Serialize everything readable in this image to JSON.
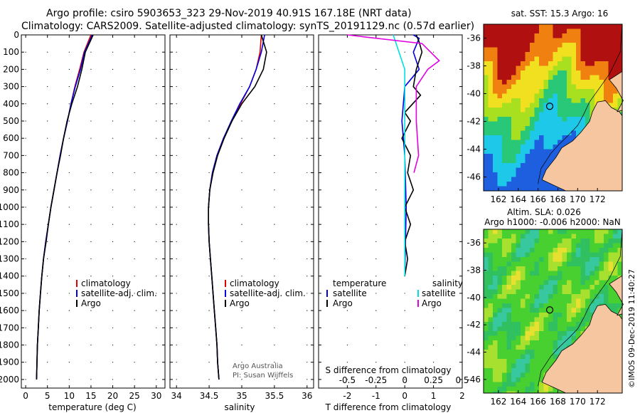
{
  "header": {
    "line1": "Argo profile: csiro 5903653_323 29-Nov-2019 40.91S 167.18E (NRT data)",
    "line2": "Climatology: CARS2009. Satellite-adjusted climatology: synTS_20191129.nc (0.57d earlier)"
  },
  "watermark": "©IMOS 09-Dec-2019 11:40:27",
  "credit": {
    "line1": "Argo Australia",
    "line2": "PI: Susan Wijffels"
  },
  "colors": {
    "climatology": "#e00000",
    "satellite": "#0000e0",
    "argo": "#000000",
    "sat_salinity": "#00e0e0",
    "clim_salinity": "#e000e0",
    "land": "#f5c6a0"
  },
  "chart_data": [
    {
      "type": "line",
      "id": "temperature_profile",
      "xlabel": "temperature (deg C)",
      "ylabel": "pressure",
      "xlim": [
        -1,
        32
      ],
      "ylim": [
        2050,
        0
      ],
      "xticks": [
        0,
        5,
        10,
        15,
        20,
        25,
        30
      ],
      "yticks": [
        0,
        100,
        200,
        300,
        400,
        500,
        600,
        700,
        800,
        900,
        1000,
        1100,
        1200,
        1300,
        1400,
        1500,
        1600,
        1700,
        1800,
        1900,
        2000
      ],
      "grid": true,
      "legend": [
        "climatology",
        "satellite-adj. clim.",
        "Argo"
      ],
      "series": [
        {
          "name": "climatology",
          "color": "#e00000",
          "x": [
            15.0,
            13.4,
            12.4,
            11.3,
            10.4,
            9.6,
            8.7,
            7.9,
            7.2,
            6.5,
            5.8,
            5.2,
            4.6,
            4.1,
            3.7,
            3.4,
            3.1,
            2.9,
            2.7,
            2.6,
            2.5
          ],
          "y": [
            0,
            100,
            200,
            300,
            400,
            500,
            600,
            700,
            800,
            900,
            1000,
            1100,
            1200,
            1300,
            1400,
            1500,
            1600,
            1700,
            1800,
            1900,
            2000
          ]
        },
        {
          "name": "satellite-adj. clim.",
          "color": "#0000e0",
          "x": [
            15.3,
            13.5,
            12.6,
            11.4,
            10.4,
            9.6,
            8.7,
            7.9,
            7.2,
            6.5,
            5.8,
            5.2,
            4.6,
            4.1,
            3.7,
            3.4,
            3.1,
            2.9,
            2.7,
            2.6,
            2.5
          ],
          "y": [
            0,
            100,
            200,
            300,
            400,
            500,
            600,
            700,
            800,
            900,
            1000,
            1100,
            1200,
            1300,
            1400,
            1500,
            1600,
            1700,
            1800,
            1900,
            2000
          ]
        },
        {
          "name": "Argo",
          "color": "#000000",
          "x": [
            15.5,
            13.7,
            12.9,
            11.9,
            10.6,
            9.5,
            8.7,
            8.0,
            7.2,
            6.5,
            5.8,
            5.2,
            4.7,
            4.1,
            3.7,
            3.4,
            3.1,
            2.9,
            2.7,
            2.6,
            2.5
          ],
          "y": [
            0,
            100,
            200,
            300,
            400,
            500,
            600,
            700,
            800,
            900,
            1000,
            1100,
            1200,
            1300,
            1400,
            1500,
            1600,
            1700,
            1800,
            1900,
            2000
          ]
        }
      ]
    },
    {
      "type": "line",
      "id": "salinity_profile",
      "xlabel": "salinity",
      "ylabel": "pressure",
      "xlim": [
        33.9,
        36.1
      ],
      "ylim": [
        2050,
        0
      ],
      "xticks": [
        34,
        34.5,
        35,
        35.5,
        36
      ],
      "grid": true,
      "legend": [
        "climatology",
        "satellite-adj. clim.",
        "Argo"
      ],
      "series": [
        {
          "name": "climatology",
          "color": "#e00000",
          "x": [
            35.3,
            35.28,
            35.22,
            35.12,
            34.98,
            34.85,
            34.72,
            34.62,
            34.55,
            34.51,
            34.49,
            34.49,
            34.5,
            34.52,
            34.54,
            34.56,
            34.58,
            34.6,
            34.62,
            34.63,
            34.65
          ],
          "y": [
            0,
            100,
            200,
            300,
            400,
            500,
            600,
            700,
            800,
            900,
            1000,
            1100,
            1200,
            1300,
            1400,
            1500,
            1600,
            1700,
            1800,
            1900,
            2000
          ]
        },
        {
          "name": "satellite-adj. clim.",
          "color": "#0000e0",
          "x": [
            35.35,
            35.3,
            35.22,
            35.12,
            34.97,
            34.84,
            34.72,
            34.62,
            34.55,
            34.51,
            34.49,
            34.49,
            34.5,
            34.52,
            34.54,
            34.56,
            34.58,
            34.6,
            34.62,
            34.63,
            34.65
          ],
          "y": [
            0,
            100,
            200,
            300,
            400,
            500,
            600,
            700,
            800,
            900,
            1000,
            1100,
            1200,
            1300,
            1400,
            1500,
            1600,
            1700,
            1800,
            1900,
            2000
          ]
        },
        {
          "name": "Argo",
          "color": "#000000",
          "x": [
            35.3,
            35.38,
            35.33,
            35.2,
            35.0,
            34.85,
            34.73,
            34.63,
            34.56,
            34.51,
            34.49,
            34.49,
            34.5,
            34.52,
            34.54,
            34.56,
            34.58,
            34.6,
            34.62,
            34.63,
            34.65
          ],
          "y": [
            0,
            100,
            200,
            300,
            400,
            500,
            600,
            700,
            800,
            900,
            1000,
            1100,
            1200,
            1300,
            1400,
            1500,
            1600,
            1700,
            1800,
            1900,
            2000
          ]
        }
      ]
    },
    {
      "type": "line",
      "id": "difference_profile",
      "xlabel": "T difference from climatology",
      "xlabel_top": "S difference from climatology",
      "xlim": [
        -3,
        2
      ],
      "ylim": [
        2050,
        0
      ],
      "xticks": [
        -2,
        -1,
        0,
        1,
        2
      ],
      "xticks_s": [
        -0.5,
        -0.25,
        0,
        0.25,
        0.5
      ],
      "xticks_s_labels": [
        "-0.5",
        "-0.25",
        "0",
        "0.25",
        "0.5"
      ],
      "grid": true,
      "legend_temperature_title": "temperature",
      "legend_salinity_title": "salinity",
      "legend_temperature": [
        "satellite",
        "Argo"
      ],
      "legend_salinity": [
        "satellite",
        "Argo"
      ],
      "series": [
        {
          "name": "temperature satellite",
          "color": "#0000e0",
          "x": [
            0.3,
            0.5,
            0.3,
            0.5,
            0.0,
            -0.1,
            0.0,
            0.05,
            0.0
          ],
          "y": [
            0,
            20,
            100,
            200,
            300,
            500,
            700,
            1000,
            1400
          ]
        },
        {
          "name": "temperature Argo",
          "color": "#000000",
          "x": [
            0.4,
            0.5,
            0.6,
            0.4,
            0.3,
            0.55,
            0.0,
            0.2,
            -0.1,
            0.2,
            0.1,
            0.3,
            0.0,
            0.2,
            0.0,
            0.1,
            0.0
          ],
          "y": [
            0,
            40,
            100,
            200,
            300,
            350,
            450,
            500,
            600,
            700,
            800,
            900,
            1000,
            1100,
            1200,
            1300,
            1400
          ]
        },
        {
          "name": "salinity satellite",
          "color": "#00e0e0",
          "x": [
            -0.1,
            -0.05,
            0.0,
            0.0,
            0.0,
            0.0
          ],
          "y": [
            0,
            100,
            200,
            500,
            1000,
            1400
          ]
        },
        {
          "name": "salinity Argo",
          "color": "#e000e0",
          "x": [
            -0.5,
            0.15,
            0.3,
            0.2,
            0.1,
            0.1,
            0.12,
            0.08
          ],
          "y": [
            0,
            50,
            150,
            200,
            300,
            500,
            700,
            800
          ]
        }
      ]
    },
    {
      "type": "heatmap",
      "id": "sst_map",
      "title": "sat. SST: 15.3 Argo: 16",
      "xlim": [
        160.5,
        174.5
      ],
      "ylim": [
        -47,
        -35
      ],
      "xticks": [
        162,
        164,
        166,
        168,
        170,
        172
      ],
      "yticks": [
        -36,
        -38,
        -40,
        -42,
        -44,
        -46
      ],
      "float_position": [
        167.18,
        -40.91
      ]
    },
    {
      "type": "heatmap",
      "id": "sla_map",
      "title_line1": "Altim. SLA: 0.026",
      "title_line2": "Argo h1000: -0.006 h2000: NaN",
      "xlim": [
        160.5,
        174.5
      ],
      "ylim": [
        -47,
        -35
      ],
      "xticks": [
        162,
        164,
        166,
        168,
        170,
        172
      ],
      "yticks": [
        -36,
        -38,
        -40,
        -42,
        -44,
        -46
      ],
      "float_position": [
        167.18,
        -40.91
      ]
    }
  ]
}
